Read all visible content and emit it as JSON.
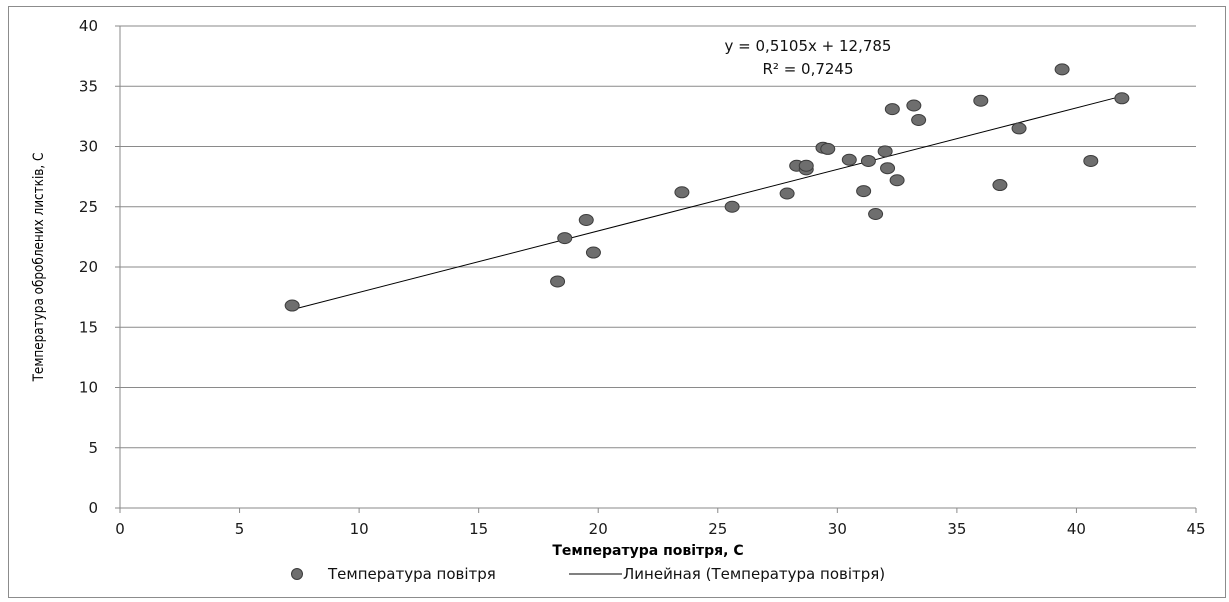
{
  "chart_data": {
    "type": "scatter",
    "title": "",
    "xlabel": "Температура повітря, С",
    "ylabel": "Температура оброблених листків, С",
    "xlim": [
      0,
      45
    ],
    "ylim": [
      0,
      40
    ],
    "x_ticks": [
      0,
      5,
      10,
      15,
      20,
      25,
      30,
      35,
      40,
      45
    ],
    "y_ticks": [
      0,
      5,
      10,
      15,
      20,
      25,
      30,
      35,
      40
    ],
    "grid": "horizontal",
    "legend_position": "bottom",
    "series": [
      {
        "name": "Температура повітря",
        "marker_color": "#6e6e6e",
        "points": [
          {
            "x": 7.2,
            "y": 16.8
          },
          {
            "x": 18.3,
            "y": 18.8
          },
          {
            "x": 18.6,
            "y": 22.4
          },
          {
            "x": 19.5,
            "y": 23.9
          },
          {
            "x": 19.8,
            "y": 21.2
          },
          {
            "x": 23.5,
            "y": 26.2
          },
          {
            "x": 25.6,
            "y": 25.0
          },
          {
            "x": 27.9,
            "y": 26.1
          },
          {
            "x": 28.3,
            "y": 28.4
          },
          {
            "x": 28.7,
            "y": 28.1
          },
          {
            "x": 28.7,
            "y": 28.4
          },
          {
            "x": 29.4,
            "y": 29.9
          },
          {
            "x": 29.6,
            "y": 29.8
          },
          {
            "x": 30.5,
            "y": 28.9
          },
          {
            "x": 31.1,
            "y": 26.3
          },
          {
            "x": 31.3,
            "y": 28.8
          },
          {
            "x": 31.6,
            "y": 24.4
          },
          {
            "x": 32.0,
            "y": 29.6
          },
          {
            "x": 32.1,
            "y": 28.2
          },
          {
            "x": 32.3,
            "y": 33.1
          },
          {
            "x": 32.5,
            "y": 27.2
          },
          {
            "x": 33.2,
            "y": 33.4
          },
          {
            "x": 33.4,
            "y": 32.2
          },
          {
            "x": 36.0,
            "y": 33.8
          },
          {
            "x": 36.8,
            "y": 26.8
          },
          {
            "x": 37.6,
            "y": 31.5
          },
          {
            "x": 39.4,
            "y": 36.4
          },
          {
            "x": 40.6,
            "y": 28.8
          },
          {
            "x": 41.9,
            "y": 34.0
          }
        ]
      }
    ],
    "trendline": {
      "name": "Линейная (Температура повітря)",
      "slope": 0.5105,
      "intercept": 12.785,
      "x_range": [
        7.2,
        41.9
      ],
      "equation_label": "y = 0,5105x + 12,785",
      "r2_label": "R² = 0,7245"
    }
  }
}
